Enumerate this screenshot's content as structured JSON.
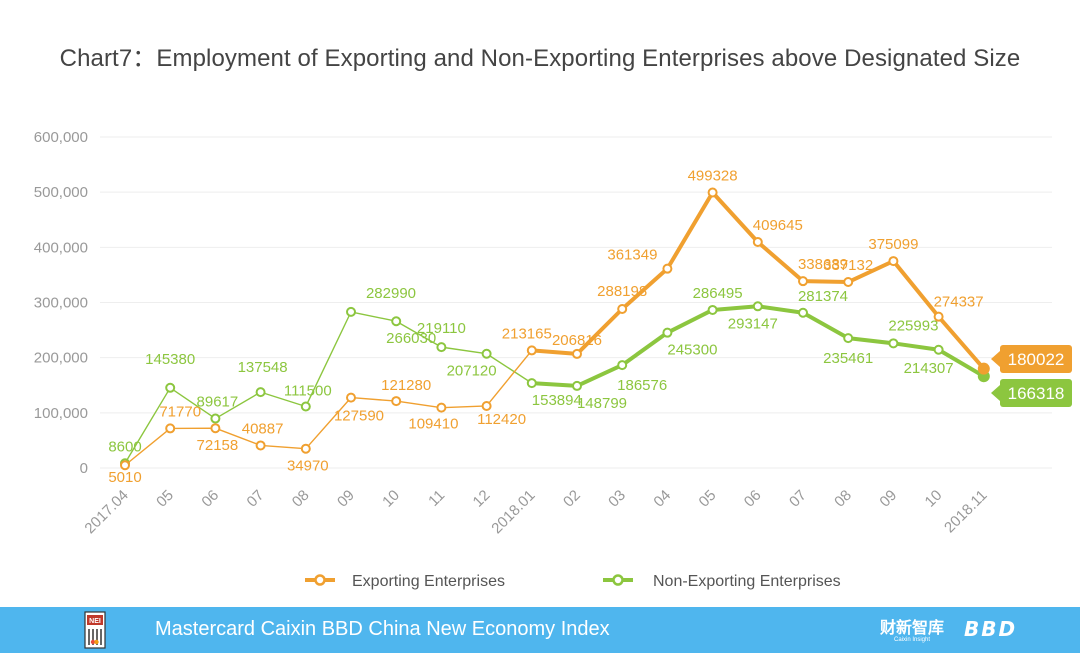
{
  "chart_data": {
    "type": "line",
    "title": "Chart7：Employment of Exporting and Non-Exporting Enterprises above Designated Size",
    "categories": [
      "2017.04",
      "05",
      "06",
      "07",
      "08",
      "09",
      "10",
      "11",
      "12",
      "2018.01",
      "02",
      "03",
      "04",
      "05",
      "06",
      "07",
      "08",
      "09",
      "10",
      "2018.11"
    ],
    "y_ticks": [
      "0",
      "100,000",
      "200,000",
      "300,000",
      "400,000",
      "500,000",
      "600,000"
    ],
    "ylim": [
      0,
      600000
    ],
    "xlabel": "",
    "ylabel": "",
    "legend_position": "bottom",
    "series": [
      {
        "name": "Exporting Enterprises",
        "color": "#f0a030",
        "values": [
          5010,
          71770,
          72158,
          40887,
          34970,
          127590,
          121280,
          109410,
          112420,
          213165,
          206816,
          288198,
          361349,
          499328,
          409645,
          338689,
          337132,
          375099,
          274337,
          180022
        ],
        "labels": [
          "5010",
          "71770",
          "72158",
          "40887",
          "34970",
          "127590",
          "121280",
          "109410",
          "112420",
          "213165",
          "206816",
          "288198",
          "361349",
          "499328",
          "409645",
          "338689",
          "337132",
          "375099",
          "274337",
          "180022"
        ]
      },
      {
        "name": "Non-Exporting Enterprises",
        "color": "#8cc63f",
        "values": [
          8600,
          145380,
          89617,
          137548,
          111500,
          282990,
          266030,
          219110,
          207120,
          153894,
          148799,
          186576,
          245300,
          286495,
          293147,
          281374,
          235461,
          225993,
          214307,
          166318
        ],
        "labels": [
          "8600",
          "145380",
          "89617",
          "137548",
          "111500",
          "282990",
          "266030",
          "219110",
          "207120",
          "153894",
          "148799",
          "186576",
          "245300",
          "286495",
          "293147",
          "281374",
          "235461",
          "225993",
          "214307",
          "166318"
        ]
      }
    ]
  },
  "footer": {
    "text": "Mastercard Caixin BBD China New Economy Index",
    "logo_text": "NEI",
    "brand_cn": "财新智库",
    "brand_sub": "Caixin Insight",
    "brand_bbd": "BBD"
  }
}
